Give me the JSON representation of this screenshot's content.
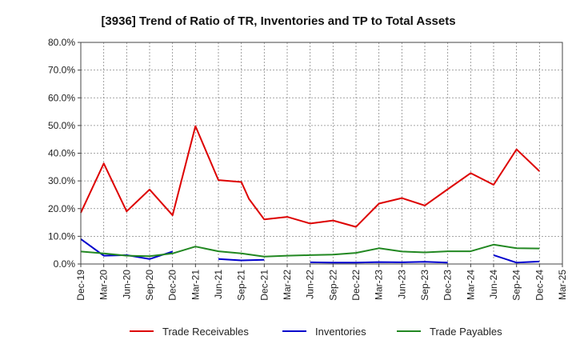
{
  "chart_data": {
    "type": "line",
    "title": "[3936]  Trend of Ratio of TR, Inventories and TP to Total Assets",
    "xlabel": "",
    "ylabel": "",
    "ylim": [
      0,
      80
    ],
    "yticks": [
      "0.0%",
      "10.0%",
      "20.0%",
      "30.0%",
      "40.0%",
      "50.0%",
      "60.0%",
      "70.0%",
      "80.0%"
    ],
    "x_tick_labels": [
      "Dec-19",
      "Mar-20",
      "Jun-20",
      "Sep-20",
      "Dec-20",
      "Mar-21",
      "Jun-21",
      "Sep-21",
      "Dec-21",
      "Mar-22",
      "Jun-22",
      "Sep-22",
      "Dec-22",
      "Mar-23",
      "Jun-23",
      "Sep-23",
      "Dec-23",
      "Mar-24",
      "Jun-24",
      "Sep-24",
      "Dec-24",
      "Mar-25"
    ],
    "grid": true,
    "legend_position": "bottom",
    "series": [
      {
        "name": "Trade Receivables",
        "color": "#dd0000",
        "points": [
          [
            "Dec-19",
            18.5
          ],
          [
            "Mar-20",
            36.3
          ],
          [
            "Jun-20",
            19.0
          ],
          [
            "Sep-20",
            26.9
          ],
          [
            "Dec-20",
            17.6
          ],
          [
            "Mar-21",
            49.8
          ],
          [
            "Jun-21",
            30.3
          ],
          [
            "Sep-21",
            29.6
          ],
          [
            "Oct-21",
            23.5
          ],
          [
            "Dec-21",
            16.1
          ],
          [
            "Mar-22",
            17.0
          ],
          [
            "Jun-22",
            14.6
          ],
          [
            "Sep-22",
            15.7
          ],
          [
            "Dec-22",
            13.4
          ],
          [
            "Mar-23",
            21.8
          ],
          [
            "Jun-23",
            23.8
          ],
          [
            "Sep-23",
            21.1
          ],
          [
            "Dec-23",
            27.0
          ],
          [
            "Mar-24",
            32.8
          ],
          [
            "Jun-24",
            28.6
          ],
          [
            "Sep-24",
            41.4
          ],
          [
            "Dec-24",
            33.5
          ]
        ]
      },
      {
        "name": "Inventories",
        "color": "#0000cc",
        "points": [
          [
            "Dec-19",
            9.0
          ],
          [
            "Mar-20",
            3.0
          ],
          [
            "Jun-20",
            3.2
          ],
          [
            "Sep-20",
            1.8
          ],
          [
            "Dec-20",
            4.5
          ],
          [
            "Mar-21",
            null
          ],
          [
            "Jun-21",
            1.8
          ],
          [
            "Sep-21",
            1.3
          ],
          [
            "Dec-21",
            1.5
          ],
          [
            "Mar-22",
            null
          ],
          [
            "Jun-22",
            0.6
          ],
          [
            "Sep-22",
            0.5
          ],
          [
            "Dec-22",
            0.5
          ],
          [
            "Mar-23",
            0.7
          ],
          [
            "Jun-23",
            0.6
          ],
          [
            "Sep-23",
            0.8
          ],
          [
            "Dec-23",
            0.5
          ],
          [
            "Mar-24",
            null
          ],
          [
            "Jun-24",
            3.2
          ],
          [
            "Sep-24",
            0.5
          ],
          [
            "Dec-24",
            0.9
          ]
        ]
      },
      {
        "name": "Trade Payables",
        "color": "#228822",
        "points": [
          [
            "Dec-19",
            4.5
          ],
          [
            "Mar-20",
            3.8
          ],
          [
            "Jun-20",
            3.0
          ],
          [
            "Sep-20",
            2.8
          ],
          [
            "Dec-20",
            3.8
          ],
          [
            "Mar-21",
            6.3
          ],
          [
            "Jun-21",
            4.6
          ],
          [
            "Sep-21",
            3.8
          ],
          [
            "Dec-21",
            2.7
          ],
          [
            "Mar-22",
            3.0
          ],
          [
            "Jun-22",
            3.2
          ],
          [
            "Sep-22",
            3.4
          ],
          [
            "Dec-22",
            4.0
          ],
          [
            "Mar-23",
            5.7
          ],
          [
            "Jun-23",
            4.5
          ],
          [
            "Sep-23",
            4.2
          ],
          [
            "Dec-23",
            4.6
          ],
          [
            "Mar-24",
            4.6
          ],
          [
            "Jun-24",
            7.0
          ],
          [
            "Sep-24",
            5.7
          ],
          [
            "Dec-24",
            5.6
          ]
        ]
      }
    ]
  }
}
